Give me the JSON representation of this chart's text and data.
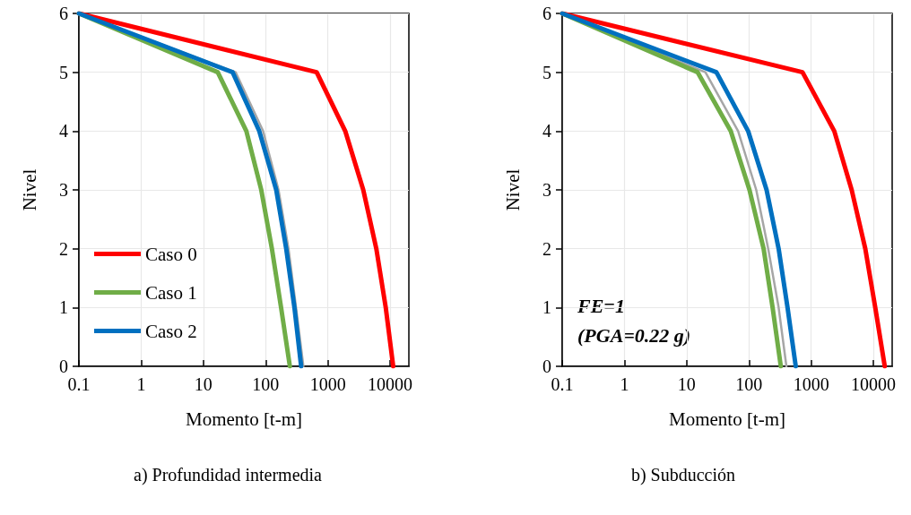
{
  "chart_data": [
    {
      "type": "line",
      "title": "a) Profundidad intermedia",
      "xlabel": "Momento [t-m]",
      "ylabel": "Nivel",
      "log": "x",
      "xlim": [
        0.1,
        20000
      ],
      "xticks": [
        0.1,
        1,
        10,
        100,
        1000,
        10000
      ],
      "ylim": [
        0,
        6
      ],
      "yticks": [
        0,
        1,
        2,
        3,
        4,
        5,
        6
      ],
      "grid": true,
      "legend": "bottom left",
      "marker": "none",
      "line_style": "solid",
      "series": [
        {
          "color": "#a6a6a6",
          "x": [
            0.1,
            33,
            91,
            161,
            233,
            308,
            404
          ],
          "values": [
            6,
            5,
            4,
            3,
            2,
            1,
            0
          ]
        },
        {
          "name": "Caso 0",
          "color": "#ff0000",
          "x": [
            0.1,
            660,
            1900,
            3700,
            6000,
            8500,
            11200
          ],
          "values": [
            6,
            5,
            4,
            3,
            2,
            1,
            0
          ]
        },
        {
          "name": "Caso 1",
          "color": "#70ad47",
          "x": [
            0.1,
            17,
            49,
            85,
            126,
            177,
            245
          ],
          "values": [
            6,
            5,
            4,
            3,
            2,
            1,
            0
          ]
        },
        {
          "name": "Caso 2",
          "color": "#0070c0",
          "x": [
            0.1,
            29.5,
            79,
            148,
            214,
            290,
            372
          ],
          "values": [
            6,
            5,
            4,
            3,
            2,
            1,
            0
          ]
        }
      ]
    },
    {
      "type": "line",
      "title": "b) Subducción",
      "xlabel": "Momento [t-m]",
      "ylabel": "Nivel",
      "log": "x",
      "xlim": [
        0.1,
        20000
      ],
      "xticks": [
        0.1,
        1,
        10,
        100,
        1000,
        10000
      ],
      "ylim": [
        0,
        6
      ],
      "yticks": [
        0,
        1,
        2,
        3,
        4,
        5,
        6
      ],
      "grid": true,
      "legend": false,
      "marker": "none",
      "line_style": "solid",
      "annotations": [
        "FE=1",
        "(PGA=0.22 g)"
      ],
      "series": [
        {
          "color": "#a6a6a6",
          "x": [
            0.1,
            20,
            67,
            131,
            204,
            300,
            400
          ],
          "values": [
            6,
            5,
            4,
            3,
            2,
            1,
            0
          ]
        },
        {
          "color": "#ff0000",
          "x": [
            0.1,
            725,
            2350,
            4470,
            7400,
            10700,
            15200
          ],
          "values": [
            6,
            5,
            4,
            3,
            2,
            1,
            0
          ]
        },
        {
          "color": "#70ad47",
          "x": [
            0.1,
            15,
            51,
            102,
            172,
            240,
            325
          ],
          "values": [
            6,
            5,
            4,
            3,
            2,
            1,
            0
          ]
        },
        {
          "color": "#0070c0",
          "x": [
            0.1,
            30,
            97,
            192,
            300,
            417,
            565
          ],
          "values": [
            6,
            5,
            4,
            3,
            2,
            1,
            0
          ]
        }
      ]
    }
  ]
}
